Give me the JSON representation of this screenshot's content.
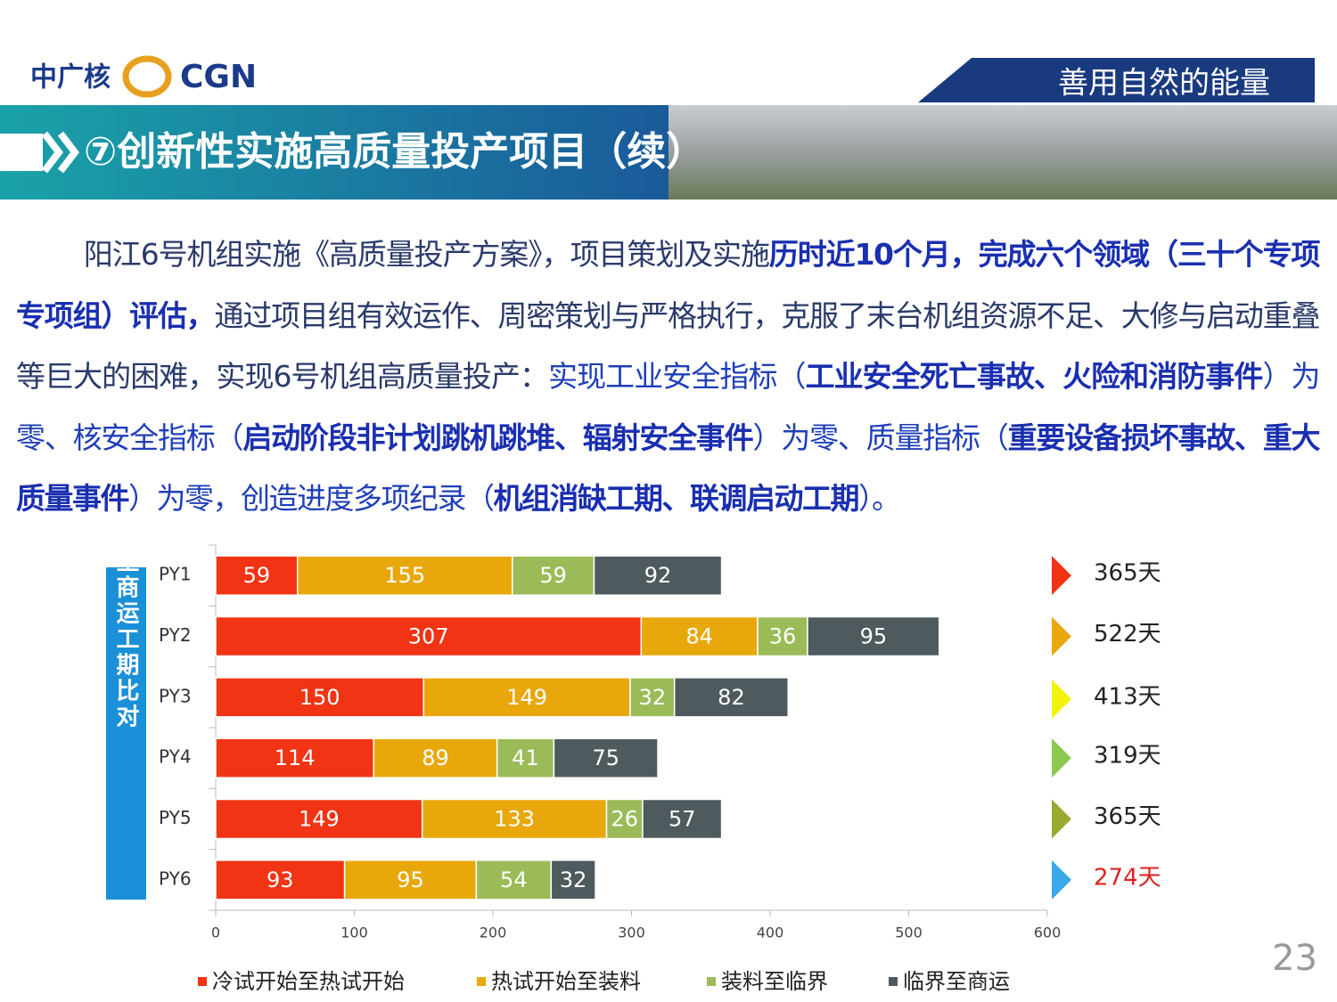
{
  "header": {
    "logo": "中广核",
    "logo_en": "CGN",
    "slogan": "善用自然的能量",
    "title": "⑦创新性实施高质量投产项目（续）"
  },
  "paragraph": [
    {
      "text": "阳江6号机组实施《高质量投产方案》，项目策划及实施",
      "style": "plain"
    },
    {
      "text": "历时近10个月，完成六个领域（三十个专项专项组）评估，",
      "style": "bold"
    },
    {
      "text": "通过项目组有效运作、周密策划与严格执行，克服了末台机组资源不足、大修与启动重叠等巨大的困难，实现6号机组高质量投产：",
      "style": "plain"
    },
    {
      "text": "实现工业安全指标（",
      "style": "blue"
    },
    {
      "text": "工业安全死亡事故、火险和消防事件",
      "style": "bold"
    },
    {
      "text": "）为零、核安全指标（",
      "style": "blue"
    },
    {
      "text": "启动阶段非计划跳机跳堆、辐射安全事件",
      "style": "bold"
    },
    {
      "text": "）为零、质量指标（",
      "style": "blue"
    },
    {
      "text": "重要设备损坏事故、重大质量事件",
      "style": "bold"
    },
    {
      "text": "）为零，创造进度多项纪录（",
      "style": "blue"
    },
    {
      "text": "机组消缺工期、联调启动工期",
      "style": "bold"
    },
    {
      "text": "）。",
      "style": "blue"
    }
  ],
  "chart_data": {
    "type": "bar",
    "orientation": "horizontal",
    "stacked": true,
    "side_label": "冷试开始至商运工期比对",
    "categories": [
      "PY1",
      "PY2",
      "PY3",
      "PY4",
      "PY5",
      "PY6"
    ],
    "series": [
      {
        "name": "冷试开始至热试开始",
        "color": "#f03414",
        "values": [
          59,
          307,
          150,
          114,
          149,
          93
        ]
      },
      {
        "name": "热试开始至装料",
        "color": "#e8a80c",
        "values": [
          155,
          84,
          149,
          89,
          133,
          95
        ]
      },
      {
        "name": "装料至临界",
        "color": "#9bbb59",
        "values": [
          59,
          36,
          32,
          41,
          26,
          54
        ]
      },
      {
        "name": "临界至商运",
        "color": "#4f5a5e",
        "values": [
          92,
          95,
          82,
          75,
          57,
          32
        ]
      }
    ],
    "xlim": [
      0,
      600
    ],
    "xticks": [
      0,
      100,
      200,
      300,
      400,
      500,
      600
    ],
    "total_labels": [
      "365天",
      "522天",
      "413天",
      "319天",
      "365天",
      "274天"
    ],
    "total_arrow_colors": [
      "#f03414",
      "#e8a80c",
      "#f2f20a",
      "#8cc850",
      "#9aaa30",
      "#39a8e8"
    ],
    "total_label_colors": [
      "#222222",
      "#222222",
      "#222222",
      "#222222",
      "#222222",
      "#e02020"
    ]
  },
  "page_number": "23"
}
